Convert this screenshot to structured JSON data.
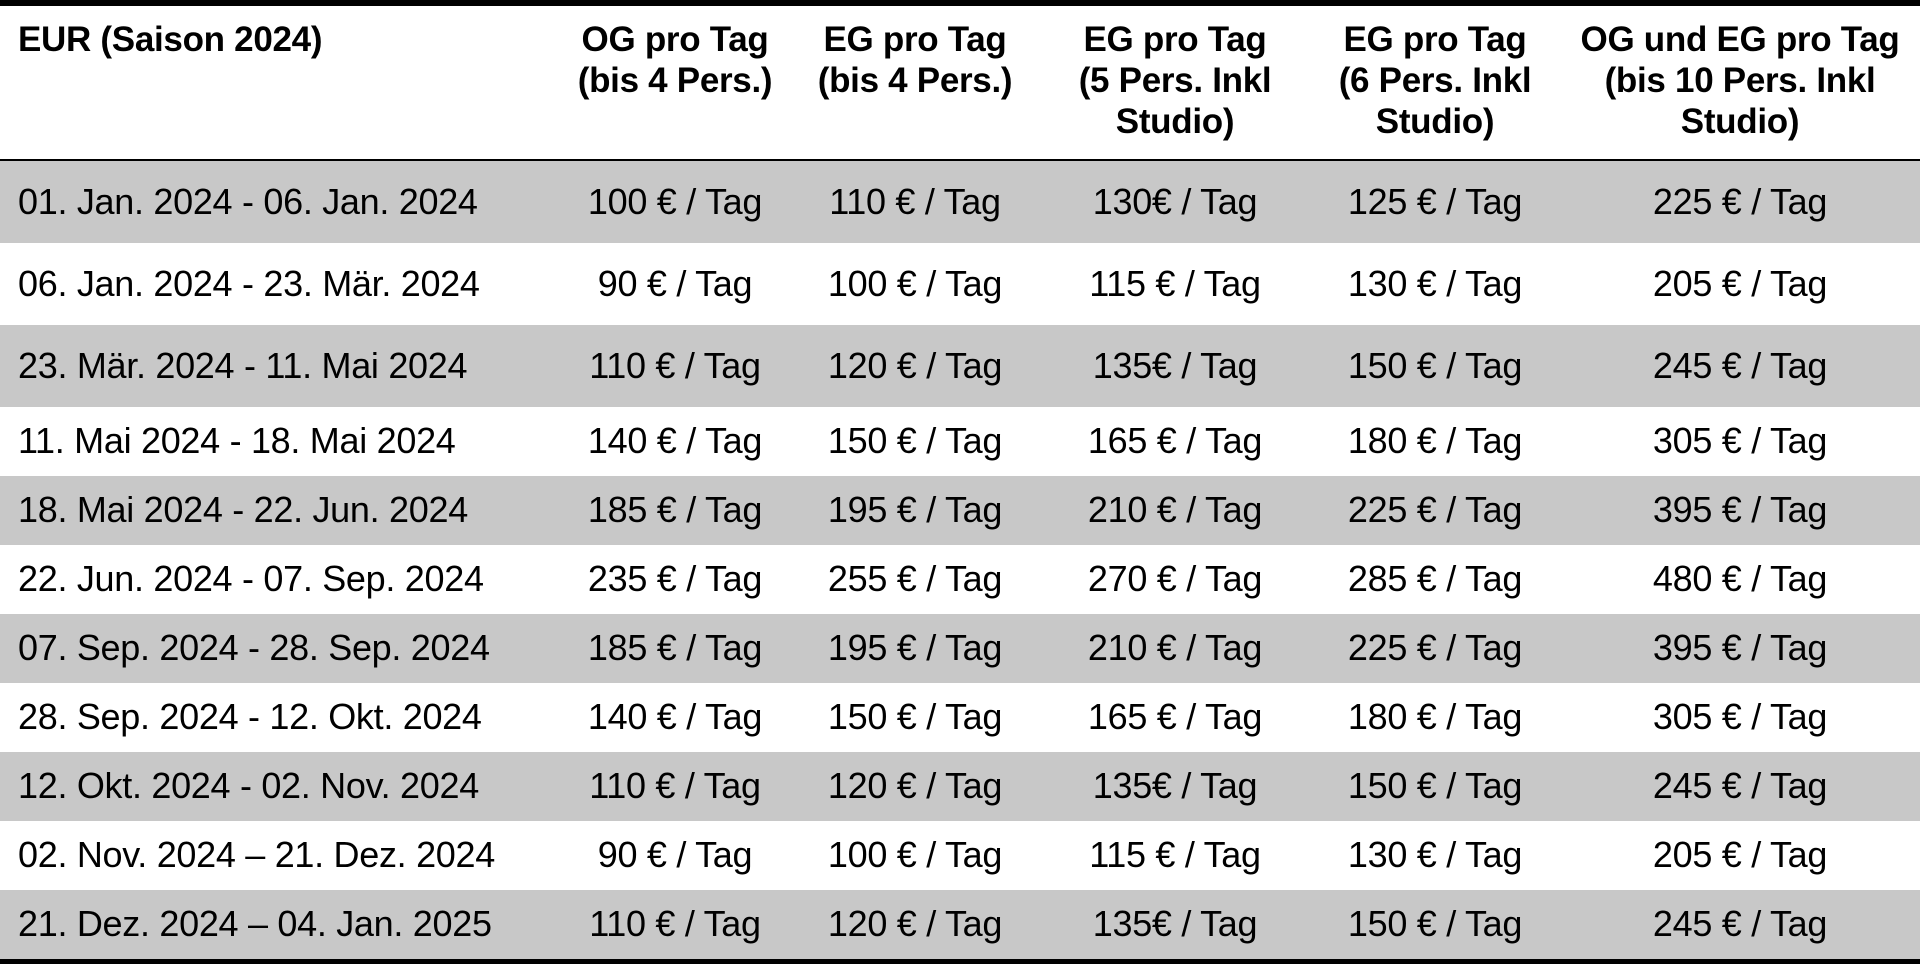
{
  "colors": {
    "stripe_gray": "#c8c8c8",
    "border_black": "#000000",
    "background": "#ffffff",
    "text": "#000000"
  },
  "chart_data": {
    "type": "table",
    "title": "EUR (Saison 2024)",
    "layout": {
      "stripe_pattern": "odd rows gray, even rows white",
      "borders": "thick black top and bottom, thin black line under header, no vertical gridlines"
    },
    "columns": [
      "EUR (Saison 2024)",
      "OG pro Tag\n(bis 4 Pers.)",
      "EG pro Tag\n(bis 4 Pers.)",
      "EG pro Tag\n(5 Pers. Inkl\nStudio)",
      "EG pro Tag\n(6 Pers. Inkl\nStudio)",
      "OG und EG pro Tag\n(bis 10 Pers. Inkl\nStudio)"
    ],
    "rows": [
      [
        "01. Jan. 2024 - 06. Jan. 2024",
        "100 € / Tag",
        "110 € / Tag",
        "130€ / Tag",
        "125 € / Tag",
        "225 € / Tag"
      ],
      [
        "06. Jan. 2024 - 23. Mär. 2024",
        "90 € / Tag",
        "100 € / Tag",
        "115 € / Tag",
        "130 € / Tag",
        "205 € / Tag"
      ],
      [
        "23. Mär. 2024 - 11. Mai 2024",
        "110 € / Tag",
        "120 € / Tag",
        "135€ / Tag",
        "150 € / Tag",
        "245 € / Tag"
      ],
      [
        "11. Mai 2024 - 18. Mai 2024",
        "140 € / Tag",
        "150 € / Tag",
        "165 € / Tag",
        "180 € / Tag",
        "305 € / Tag"
      ],
      [
        "18. Mai 2024 - 22. Jun. 2024",
        "185 € / Tag",
        "195 € / Tag",
        "210 € / Tag",
        "225 € / Tag",
        "395 € / Tag"
      ],
      [
        "22. Jun. 2024 - 07. Sep. 2024",
        "235 € / Tag",
        "255 € / Tag",
        "270 € / Tag",
        "285 € / Tag",
        "480 € / Tag"
      ],
      [
        "07. Sep. 2024 - 28. Sep. 2024",
        "185 € / Tag",
        "195 € / Tag",
        "210 € / Tag",
        "225 € / Tag",
        "395 € / Tag"
      ],
      [
        "28. Sep. 2024 - 12. Okt. 2024",
        "140 € / Tag",
        "150 € / Tag",
        "165 € / Tag",
        "180 € / Tag",
        "305 € / Tag"
      ],
      [
        "12. Okt. 2024 - 02. Nov. 2024",
        "110 € / Tag",
        "120 € / Tag",
        "135€ / Tag",
        "150 € / Tag",
        "245 € / Tag"
      ],
      [
        "02. Nov. 2024 – 21. Dez. 2024",
        "90 € / Tag",
        "100 € / Tag",
        "115 € / Tag",
        "130 € / Tag",
        "205 € / Tag"
      ],
      [
        "21. Dez. 2024 – 04. Jan. 2025",
        "110 € / Tag",
        "120 € / Tag",
        "135€ / Tag",
        "150 € / Tag",
        "245 € / Tag"
      ]
    ]
  }
}
